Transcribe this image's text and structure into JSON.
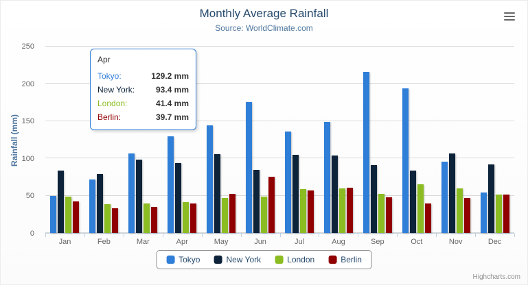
{
  "header": {
    "title": "Monthly Average Rainfall",
    "subtitle": "Source: WorldClimate.com"
  },
  "y_axis": {
    "title": "Rainfall (mm)"
  },
  "chart_data": {
    "type": "bar",
    "title": "Monthly Average Rainfall",
    "subtitle": "Source: WorldClimate.com",
    "xlabel": "",
    "ylabel": "Rainfall (mm)",
    "ylim": [
      0,
      250
    ],
    "y_ticks": [
      0,
      50,
      100,
      150,
      200,
      250
    ],
    "grid": true,
    "legend_position": "bottom",
    "categories": [
      "Jan",
      "Feb",
      "Mar",
      "Apr",
      "May",
      "Jun",
      "Jul",
      "Aug",
      "Sep",
      "Oct",
      "Nov",
      "Dec"
    ],
    "series": [
      {
        "name": "Tokyo",
        "color": "#2f7ed8",
        "values": [
          49.9,
          71.5,
          106.4,
          129.2,
          144.0,
          176.0,
          135.6,
          148.5,
          216.4,
          194.1,
          95.6,
          54.4
        ]
      },
      {
        "name": "New York",
        "color": "#0d233a",
        "values": [
          83.6,
          78.8,
          98.5,
          93.4,
          106.0,
          84.5,
          105.0,
          104.3,
          91.2,
          83.5,
          106.6,
          92.3
        ]
      },
      {
        "name": "London",
        "color": "#8bbc21",
        "values": [
          48.9,
          38.8,
          39.3,
          41.4,
          47.0,
          48.3,
          59.0,
          59.6,
          52.4,
          65.2,
          59.3,
          51.2
        ]
      },
      {
        "name": "Berlin",
        "color": "#910000",
        "values": [
          42.4,
          33.2,
          34.5,
          39.7,
          52.6,
          75.5,
          57.4,
          60.4,
          47.6,
          39.1,
          46.8,
          51.1
        ]
      }
    ]
  },
  "tooltip": {
    "category": "Apr",
    "rows": [
      {
        "name": "Tokyo",
        "value": "129.2 mm",
        "color": "#2f7ed8"
      },
      {
        "name": "New York",
        "value": "93.4 mm",
        "color": "#0d233a"
      },
      {
        "name": "London",
        "value": "41.4 mm",
        "color": "#8bbc21"
      },
      {
        "name": "Berlin",
        "value": "39.7 mm",
        "color": "#910000"
      }
    ]
  },
  "legend": {
    "items": [
      {
        "label": "Tokyo",
        "color": "#2f7ed8"
      },
      {
        "label": "New York",
        "color": "#0d233a"
      },
      {
        "label": "London",
        "color": "#8bbc21"
      },
      {
        "label": "Berlin",
        "color": "#910000"
      }
    ]
  },
  "icons": {
    "export_menu": "hamburger-menu-icon"
  },
  "colors": {
    "title": "#274b6d",
    "subtitle": "#4d759e",
    "axis_labels": "#666666",
    "tooltip_border": "#2f7ed8",
    "legend_border": "#909090",
    "gridline": "#d8d8d8"
  },
  "credit": {
    "label": "Highcharts.com"
  }
}
